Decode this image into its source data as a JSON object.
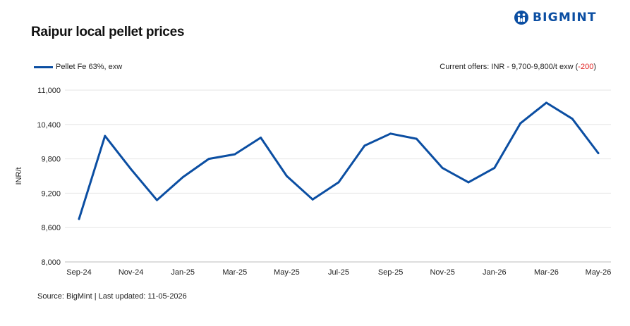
{
  "title": "Raipur local pellet prices",
  "logo": {
    "text": "BIGMINT",
    "color": "#0b4ea2",
    "icon": "bigmint-logo-icon"
  },
  "offers": {
    "prefix": "Current offers: INR - 9,700-9,800/t exw (",
    "change": "-200",
    "suffix": ")",
    "change_color": "#e02020"
  },
  "footer": "Source: BigMint | Last updated: 11-05-2026",
  "chart_data": {
    "type": "line",
    "title": "Raipur local pellet prices",
    "xlabel": "",
    "ylabel": "INR/t",
    "ylim": [
      8000,
      11000
    ],
    "yticks": [
      8000,
      8600,
      9200,
      9800,
      10400,
      11000
    ],
    "ytick_labels": [
      "8,000",
      "8,600",
      "9,200",
      "9,800",
      "10,400",
      "11,000"
    ],
    "x_tick_labels": [
      "Sep-24",
      "Nov-24",
      "Jan-25",
      "Mar-25",
      "May-25",
      "Jul-25",
      "Sep-25",
      "Nov-25",
      "Jan-26",
      "Mar-26",
      "May-26"
    ],
    "x": [
      "Sep-24",
      "Oct-24",
      "Nov-24",
      "Dec-24",
      "Jan-25",
      "Feb-25",
      "Mar-25",
      "Apr-25",
      "May-25",
      "Jun-25",
      "Jul-25",
      "Aug-25",
      "Sep-25",
      "Oct-25",
      "Nov-25",
      "Dec-25",
      "Jan-26",
      "Feb-26",
      "Mar-26",
      "Apr-26",
      "May-26"
    ],
    "grid": true,
    "legend_position": "top-left",
    "series": [
      {
        "name": "Pellet Fe 63%, exw",
        "color": "#0b4ea2",
        "values": [
          8750,
          10200,
          9620,
          9080,
          9480,
          9800,
          9880,
          10170,
          9500,
          9090,
          9390,
          10030,
          10240,
          10150,
          9640,
          9390,
          9640,
          10420,
          10780,
          10500,
          9900
        ]
      }
    ]
  }
}
